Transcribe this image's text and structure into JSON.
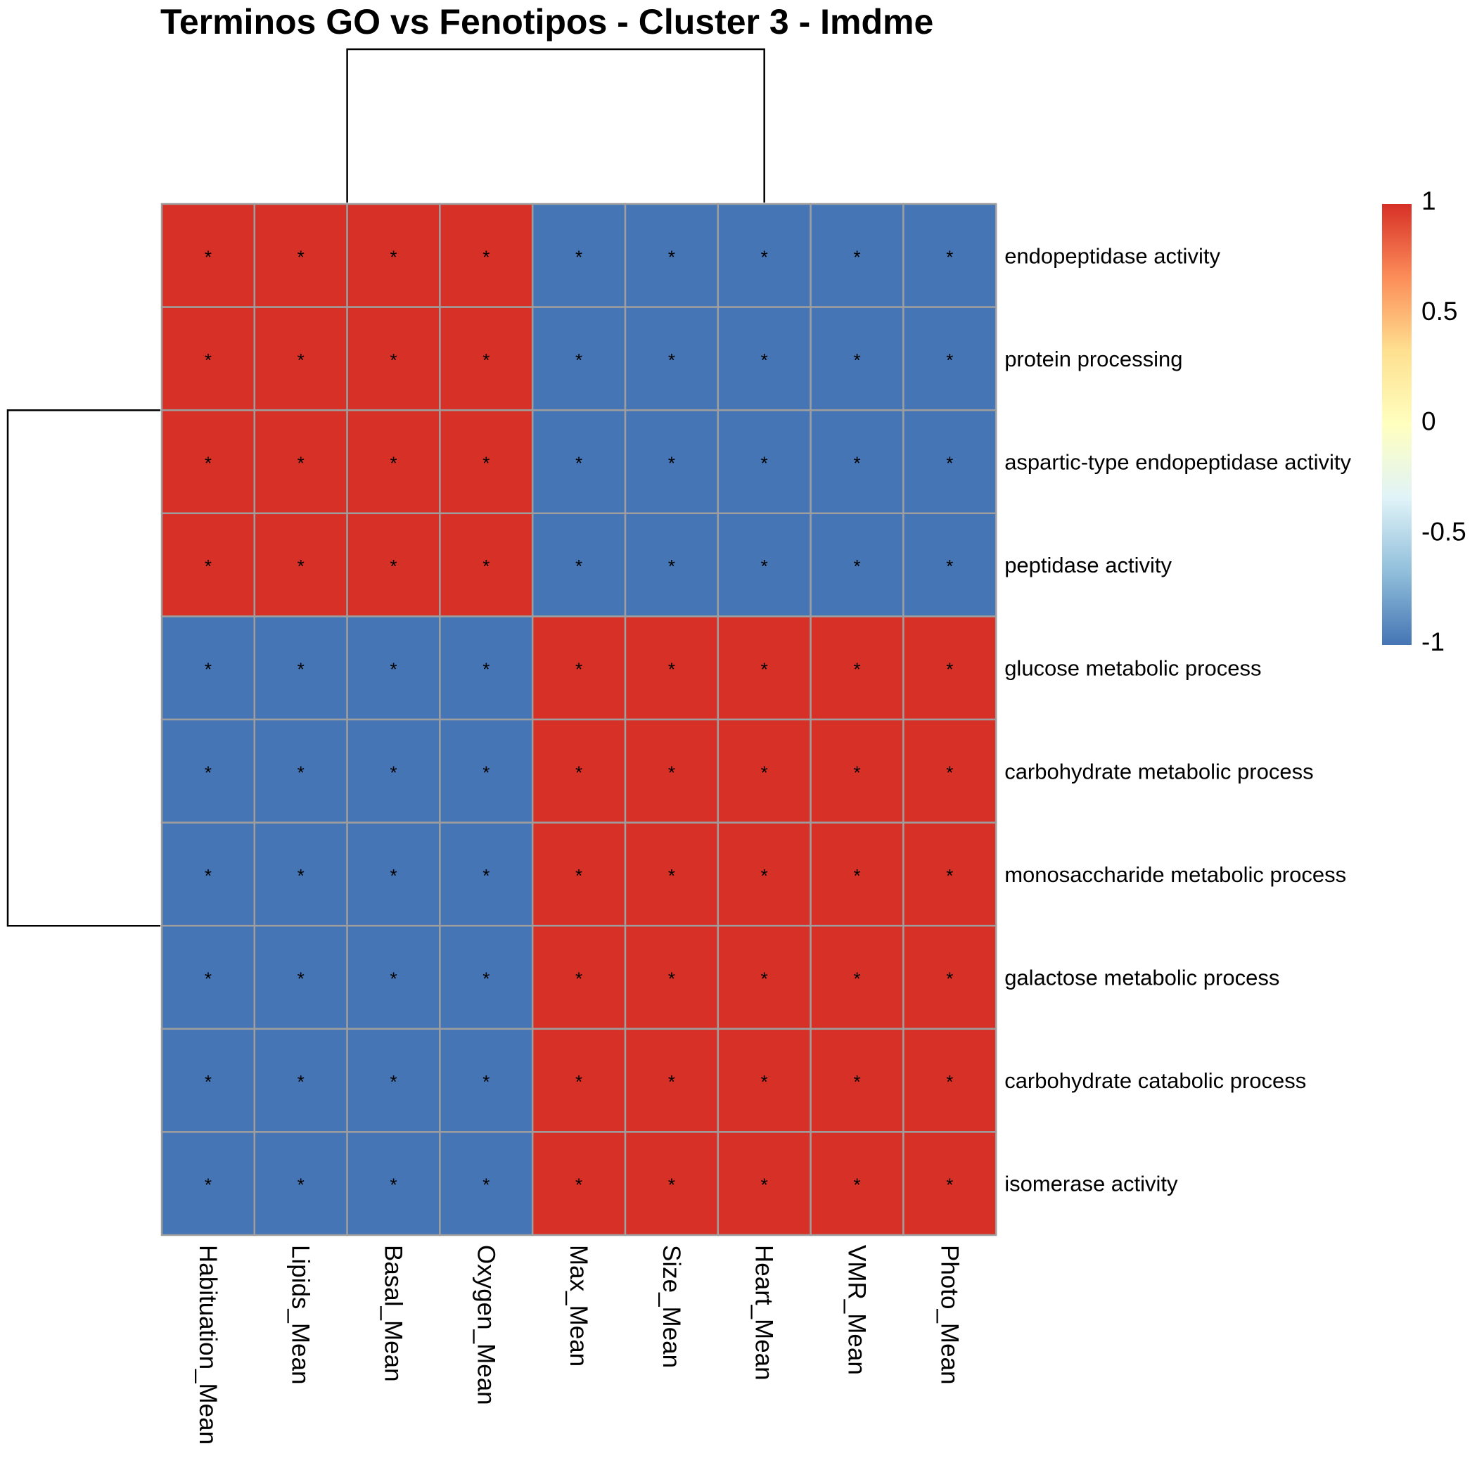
{
  "chart_data": {
    "type": "heatmap",
    "title": "Terminos GO vs Fenotipos - Cluster 3 - Imdme",
    "columns": [
      "Habituation_Mean",
      "Lipids_Mean",
      "Basal_Mean",
      "Oxygen_Mean",
      "Max_Mean",
      "Size_Mean",
      "Heart_Mean",
      "VMR_Mean",
      "Photo_Mean"
    ],
    "rows": [
      "endopeptidase activity",
      "protein processing",
      "aspartic-type endopeptidase activity",
      "peptidase activity",
      "glucose metabolic process",
      "carbohydrate metabolic process",
      "monosaccharide metabolic process",
      "galactose metabolic process",
      "carbohydrate catabolic process",
      "isomerase activity"
    ],
    "values": [
      [
        1,
        1,
        1,
        1,
        -1,
        -1,
        -1,
        -1,
        -1
      ],
      [
        1,
        1,
        1,
        1,
        -1,
        -1,
        -1,
        -1,
        -1
      ],
      [
        1,
        1,
        1,
        1,
        -1,
        -1,
        -1,
        -1,
        -1
      ],
      [
        1,
        1,
        1,
        1,
        -1,
        -1,
        -1,
        -1,
        -1
      ],
      [
        -1,
        -1,
        -1,
        -1,
        1,
        1,
        1,
        1,
        1
      ],
      [
        -1,
        -1,
        -1,
        -1,
        1,
        1,
        1,
        1,
        1
      ],
      [
        -1,
        -1,
        -1,
        -1,
        1,
        1,
        1,
        1,
        1
      ],
      [
        -1,
        -1,
        -1,
        -1,
        1,
        1,
        1,
        1,
        1
      ],
      [
        -1,
        -1,
        -1,
        -1,
        1,
        1,
        1,
        1,
        1
      ],
      [
        -1,
        -1,
        -1,
        -1,
        1,
        1,
        1,
        1,
        1
      ]
    ],
    "cell_marks": [
      [
        "*",
        "*",
        "*",
        "*",
        "*",
        "*",
        "*",
        "*",
        "*"
      ],
      [
        "*",
        "*",
        "*",
        "*",
        "*",
        "*",
        "*",
        "*",
        "*"
      ],
      [
        "*",
        "*",
        "*",
        "*",
        "*",
        "*",
        "*",
        "*",
        "*"
      ],
      [
        "*",
        "*",
        "*",
        "*",
        "*",
        "*",
        "*",
        "*",
        "*"
      ],
      [
        "*",
        "*",
        "*",
        "*",
        "*",
        "*",
        "*",
        "*",
        "*"
      ],
      [
        "*",
        "*",
        "*",
        "*",
        "*",
        "*",
        "*",
        "*",
        "*"
      ],
      [
        "*",
        "*",
        "*",
        "*",
        "*",
        "*",
        "*",
        "*",
        "*"
      ],
      [
        "*",
        "*",
        "*",
        "*",
        "*",
        "*",
        "*",
        "*",
        "*"
      ],
      [
        "*",
        "*",
        "*",
        "*",
        "*",
        "*",
        "*",
        "*",
        "*"
      ],
      [
        "*",
        "*",
        "*",
        "*",
        "*",
        "*",
        "*",
        "*",
        "*"
      ]
    ],
    "color_scale": {
      "range": [
        -1,
        1
      ],
      "stops": [
        "#4575B4",
        "#91BFDB",
        "#E0F3F8",
        "#FFFFBF",
        "#FEE090",
        "#FC8D59",
        "#D73027"
      ],
      "ticks": [
        1,
        0.5,
        0,
        -0.5,
        -1
      ],
      "tick_labels": [
        "1",
        "0.5",
        "0",
        "-0.5",
        "-1"
      ],
      "placement": "right"
    },
    "grid_color": "#9E9E9E",
    "dendrograms": {
      "columns": [
        [
          4,
          5
        ]
      ],
      "rows": [
        [
          4,
          6
        ]
      ]
    }
  }
}
